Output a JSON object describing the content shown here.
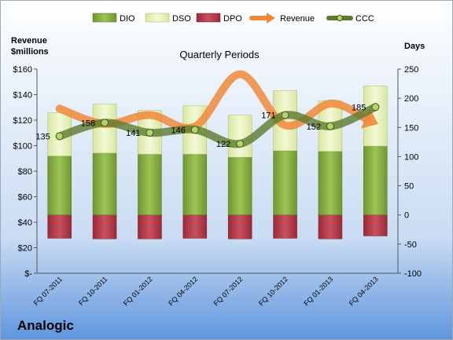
{
  "company": "Analogic",
  "chart_data": {
    "type": "bar",
    "title": "Quarterly Periods",
    "left_axis_label_line1": "Revenue",
    "left_axis_label_line2": "$millions",
    "right_axis_label": "Days",
    "categories": [
      "FQ 07-2011",
      "FQ 10-2011",
      "FQ 01-2012",
      "FQ 04-2012",
      "FQ 07-2012",
      "FQ 10-2012",
      "FQ 01-2013",
      "FQ 04-2013"
    ],
    "left_ticks": [
      "$-",
      "$20",
      "$40",
      "$60",
      "$80",
      "$100",
      "$120",
      "$140",
      "$160"
    ],
    "right_ticks": [
      "-100",
      "-50",
      "0",
      "50",
      "100",
      "150",
      "200",
      "250"
    ],
    "left_ylim": [
      0,
      160
    ],
    "right_ylim": [
      -100,
      250
    ],
    "series": [
      {
        "name": "DIO",
        "axis": "right",
        "kind": "stacked-bar",
        "values": [
          101,
          106,
          104,
          104,
          99,
          110,
          109,
          118
        ]
      },
      {
        "name": "DSO",
        "axis": "right",
        "kind": "stacked-bar",
        "values": [
          74,
          84,
          75,
          83,
          72,
          103,
          87,
          103
        ]
      },
      {
        "name": "DPO",
        "axis": "right",
        "kind": "negative-bar",
        "values": [
          -40,
          -41,
          -41,
          -40,
          -41,
          -40,
          -41,
          -36
        ]
      },
      {
        "name": "Revenue",
        "axis": "left",
        "kind": "line",
        "values": [
          129,
          117,
          124,
          115,
          156,
          116,
          133,
          118
        ]
      },
      {
        "name": "CCC",
        "axis": "right",
        "kind": "line",
        "values": [
          135,
          158,
          141,
          146,
          122,
          171,
          152,
          185
        ]
      }
    ],
    "ccc_labels": [
      "135",
      "158",
      "141",
      "146",
      "122",
      "171",
      "152",
      "185"
    ],
    "colors": {
      "DIO": "#7fa63a",
      "DSO": "#e6f0b4",
      "DPO": "#b23a48",
      "Revenue": "#f0883a",
      "CCC": "#5d7a2e"
    },
    "legend_position": "top"
  }
}
